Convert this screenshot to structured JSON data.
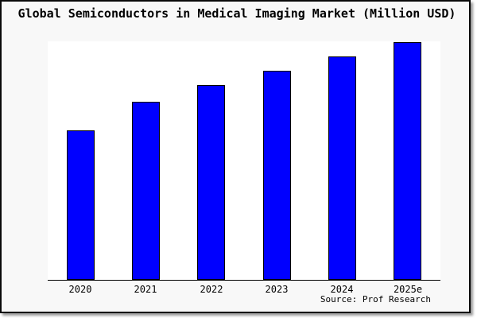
{
  "window": {
    "background_color": "#f8f8f8",
    "plot_background_color": "#ffffff",
    "border_color": "#0a0a0a"
  },
  "title": "Global Semiconductors in Medical Imaging Market (Million USD)",
  "source": "Source: Prof Research",
  "chart_data": {
    "type": "bar",
    "title": "Global Semiconductors in Medical Imaging Market (Million USD)",
    "categories": [
      "2020",
      "2021",
      "2022",
      "2023",
      "2024",
      "2025e"
    ],
    "values": [
      63,
      75,
      82,
      88,
      94,
      100
    ],
    "value_note": "no y-axis, gridlines or data labels are shown; values are bar heights relative to the tallest bar (2025e = 100)",
    "xlabel": "",
    "ylabel": "",
    "ylim": [
      0,
      100
    ],
    "grid": false,
    "legend": false,
    "y_axis_shown": false,
    "bar_color": "#0000ff",
    "bar_border_color": "#000000",
    "axis_line_color": "#000000",
    "source_text": "Source: Prof Research"
  }
}
